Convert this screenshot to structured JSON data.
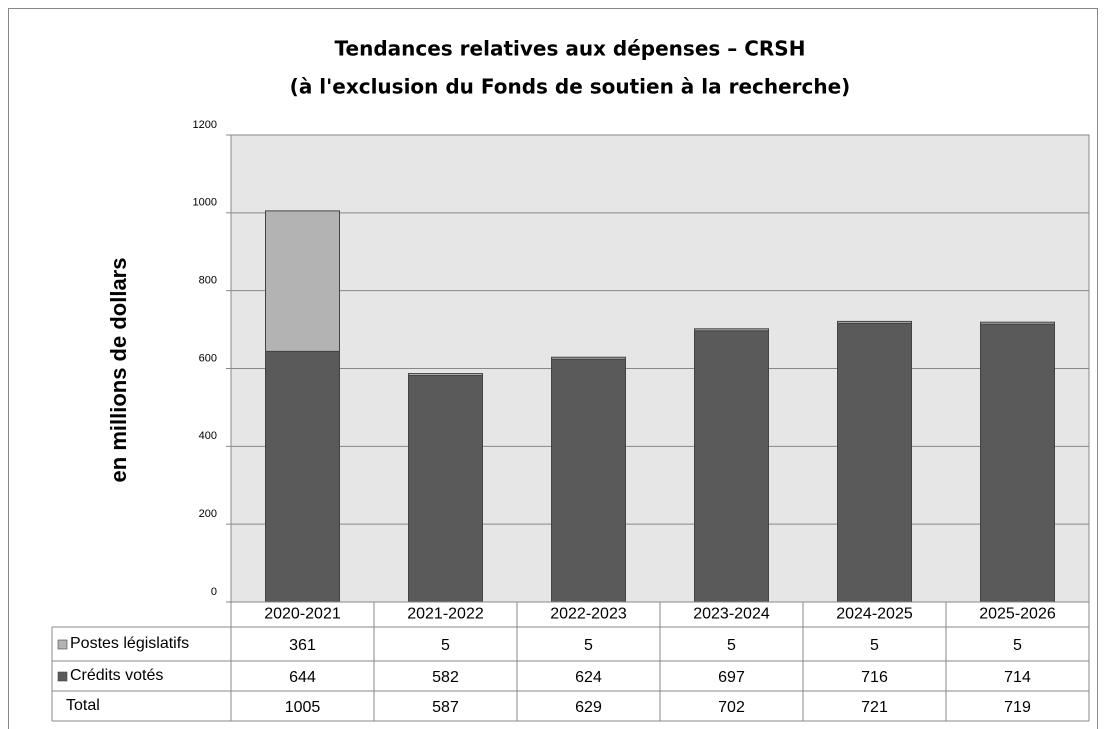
{
  "chart_data": {
    "type": "stacked_bar",
    "title": "Tendances relatives aux dépenses  –  CRSH",
    "subtitle": "(à l'exclusion du Fonds de soutien à la recherche)",
    "y_label": "en millions de dollars",
    "categories": [
      "2020-2021",
      "2021-2022",
      "2022-2023",
      "2023-2024",
      "2024-2025",
      "2025-2026"
    ],
    "series": [
      {
        "name": "Postes législatifs",
        "color": "#b3b3b3",
        "values": [
          361,
          5,
          5,
          5,
          5,
          5
        ]
      },
      {
        "name": "Crédits votés",
        "color": "#5a5a5a",
        "values": [
          644,
          582,
          624,
          697,
          716,
          714
        ]
      }
    ],
    "total_label": "Total",
    "totals": [
      1005,
      587,
      629,
      702,
      721,
      719
    ],
    "ylim": [
      0,
      1200
    ],
    "yticks": [
      0,
      200,
      400,
      600,
      800,
      1000,
      1200
    ],
    "grid": true
  }
}
